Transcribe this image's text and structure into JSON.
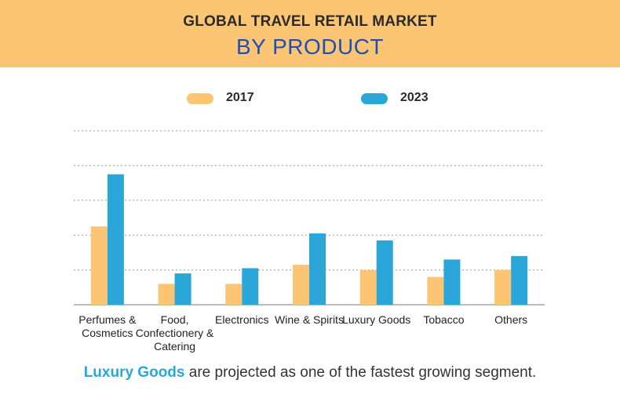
{
  "header": {
    "title_line1": "GLOBAL TRAVEL RETAIL MARKET",
    "title_line2": "BY PRODUCT"
  },
  "legend": [
    {
      "label": "2017",
      "color": "#fbc574"
    },
    {
      "label": "2023",
      "color": "#2aa6d8"
    }
  ],
  "footer": {
    "highlight": "Luxury Goods",
    "rest": " are projected as one of the fastest growing segment."
  },
  "chart_data": {
    "type": "bar",
    "categories": [
      "Perfumes & Cosmetics",
      "Food, Confectionery & Catering",
      "Electronics",
      "Wine & Spirits",
      "Luxury Goods",
      "Tobacco",
      "Others"
    ],
    "series": [
      {
        "name": "2017",
        "color": "#fbc574",
        "values": [
          45,
          12,
          12,
          23,
          20,
          16,
          20
        ]
      },
      {
        "name": "2023",
        "color": "#2aa6d8",
        "values": [
          75,
          18,
          21,
          41,
          37,
          26,
          28
        ]
      }
    ],
    "ylim": [
      0,
      100
    ],
    "grid": true,
    "legend_position": "top"
  }
}
